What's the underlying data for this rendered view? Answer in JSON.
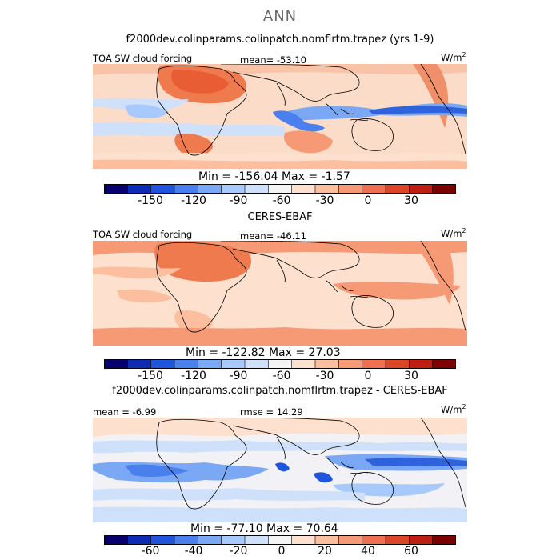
{
  "page": {
    "title": "ANN"
  },
  "panels": [
    {
      "title": "f2000dev.colinparams.colinpatch.nomflrtm.trapez (yrs 1-9)",
      "field_label": "TOA SW cloud forcing",
      "mean_text": "mean= -53.10",
      "units_base": "W/m",
      "units_exp": "2",
      "minmax_text": "Min = -156.04  Max =   -1.57",
      "colorbar_ticks": [
        "-150",
        "-120",
        "-90",
        "-60",
        "-30",
        "0",
        "30"
      ]
    },
    {
      "title": "CERES-EBAF",
      "field_label": "TOA SW cloud forcing",
      "mean_text": "mean= -46.11",
      "units_base": "W/m",
      "units_exp": "2",
      "minmax_text": "Min = -122.82  Max =   27.03",
      "colorbar_ticks": [
        "-150",
        "-120",
        "-90",
        "-60",
        "-30",
        "0",
        "30"
      ]
    },
    {
      "title": "f2000dev.colinparams.colinpatch.nomflrtm.trapez - CERES-EBAF",
      "field_label": "mean =   -6.99",
      "mean_text": "rmse =   14.29",
      "units_base": "W/m",
      "units_exp": "2",
      "minmax_text": "Min = -77.10  Max =   70.64",
      "colorbar_ticks": [
        "-60",
        "-40",
        "-20",
        "0",
        "20",
        "40",
        "60"
      ]
    }
  ],
  "colorbar_colors": [
    "#08006e",
    "#0d2bb4",
    "#1f54dc",
    "#4a80ee",
    "#7aa8f5",
    "#a8c9fb",
    "#cfe0fb",
    "#f4f4f4",
    "#fde0cd",
    "#fbbfa0",
    "#f59a75",
    "#ee7050",
    "#dc4628",
    "#bf1e12",
    "#7d0000"
  ]
}
